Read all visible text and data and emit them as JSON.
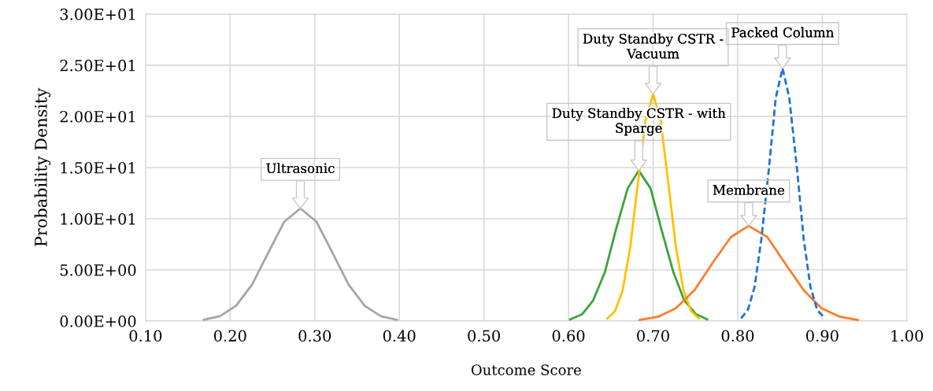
{
  "chart_data": {
    "type": "line",
    "xlabel": "Outcome Score",
    "ylabel": "Probability Density",
    "xlim": [
      0.1,
      1.0
    ],
    "ylim": [
      0,
      30
    ],
    "xticks": [
      {
        "value": 0.1,
        "label": "0.10"
      },
      {
        "value": 0.2,
        "label": "0.20"
      },
      {
        "value": 0.3,
        "label": "0.30"
      },
      {
        "value": 0.4,
        "label": "0.40"
      },
      {
        "value": 0.5,
        "label": "0.50"
      },
      {
        "value": 0.6,
        "label": "0.60"
      },
      {
        "value": 0.7,
        "label": "0.70"
      },
      {
        "value": 0.8,
        "label": "0.80"
      },
      {
        "value": 0.9,
        "label": "0.90"
      },
      {
        "value": 1.0,
        "label": "1.00"
      }
    ],
    "yticks": [
      {
        "value": 0,
        "label": "0.00E+00"
      },
      {
        "value": 5,
        "label": "5.00E+00"
      },
      {
        "value": 10,
        "label": "1.00E+01"
      },
      {
        "value": 15,
        "label": "1.50E+01"
      },
      {
        "value": 20,
        "label": "2.00E+01"
      },
      {
        "value": 25,
        "label": "2.50E+01"
      },
      {
        "value": 30,
        "label": "3.00E+01"
      }
    ],
    "grid": true,
    "legend": false,
    "marker": "none",
    "series": [
      {
        "color": "#a5a5a5",
        "line_style": "solid",
        "x": [
          0.169,
          0.188,
          0.207,
          0.226,
          0.245,
          0.264,
          0.283,
          0.302,
          0.321,
          0.34,
          0.359,
          0.378,
          0.397
        ],
        "values": [
          0.12,
          0.48,
          1.49,
          3.57,
          6.67,
          9.71,
          11.0,
          9.71,
          6.67,
          3.57,
          1.49,
          0.48,
          0.12
        ]
      },
      {
        "color": "#3ba33a",
        "line_style": "solid",
        "x": [
          0.602,
          0.616,
          0.629,
          0.643,
          0.656,
          0.67,
          0.683,
          0.697,
          0.71,
          0.724,
          0.737,
          0.751,
          0.764
        ],
        "values": [
          0.16,
          0.65,
          1.99,
          4.77,
          8.92,
          12.97,
          14.7,
          12.97,
          8.92,
          4.77,
          1.99,
          0.65,
          0.16
        ]
      },
      {
        "color": "#ffc000",
        "line_style": "solid",
        "x": [
          0.646,
          0.655,
          0.664,
          0.673,
          0.682,
          0.691,
          0.7,
          0.709,
          0.718,
          0.727,
          0.736,
          0.745,
          0.754
        ],
        "values": [
          0.25,
          0.97,
          3.0,
          7.21,
          13.46,
          19.59,
          22.2,
          19.59,
          13.46,
          7.21,
          3.0,
          0.97,
          0.25
        ]
      },
      {
        "color": "#fd7d2b",
        "line_style": "solid",
        "x": [
          0.684,
          0.706,
          0.727,
          0.749,
          0.77,
          0.792,
          0.813,
          0.835,
          0.856,
          0.878,
          0.899,
          0.921,
          0.942
        ],
        "values": [
          0.1,
          0.41,
          1.26,
          3.02,
          5.64,
          8.21,
          9.3,
          8.21,
          5.64,
          3.02,
          1.26,
          0.41,
          0.1
        ]
      },
      {
        "color": "#1f73d2",
        "line_style": "dashed",
        "x": [
          0.804,
          0.812,
          0.82,
          0.828,
          0.837,
          0.845,
          0.853,
          0.861,
          0.87,
          0.878,
          0.886,
          0.894,
          0.903
        ],
        "values": [
          0.27,
          1.08,
          3.34,
          8.02,
          14.98,
          21.8,
          24.7,
          21.8,
          14.98,
          8.02,
          3.34,
          1.08,
          0.27
        ]
      }
    ],
    "annotations": [
      {
        "text": "Ultrasonic",
        "x": 0.283,
        "y": 11.0
      },
      {
        "text": "Duty Standby CSTR - with\nSparge",
        "x": 0.683,
        "y": 14.7
      },
      {
        "text": "Duty Standby CSTR -\nVacuum",
        "x": 0.7,
        "y": 22.2
      },
      {
        "text": "Packed Column",
        "x": 0.853,
        "y": 24.7
      },
      {
        "text": "Membrane",
        "x": 0.813,
        "y": 9.3
      }
    ]
  }
}
